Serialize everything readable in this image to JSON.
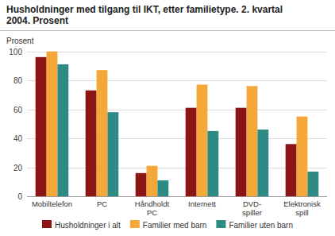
{
  "chart_data": {
    "type": "bar",
    "title": "Husholdninger med tilgang til IKT, etter familietype. 2. kvartal\n2004. Prosent",
    "y_label": "Prosent",
    "categories": [
      "Mobiltelefon",
      "PC",
      "Håndholdt\nPC",
      "Internett",
      "DVD-\nspiller",
      "Elektronisk\nspill"
    ],
    "series": [
      {
        "name": "Husholdninger i alt",
        "color": "#8B1414",
        "values": [
          96,
          73,
          16,
          61,
          61,
          36
        ]
      },
      {
        "name": "Familier med barn",
        "color": "#F5A83A",
        "values": [
          100,
          87,
          21,
          77,
          76,
          55
        ]
      },
      {
        "name": "Familier uten barn",
        "color": "#2E8B84",
        "values": [
          91,
          58,
          11,
          45,
          46,
          17
        ]
      }
    ],
    "ylim": [
      0,
      100
    ],
    "yticks": [
      0,
      20,
      40,
      60,
      80,
      100
    ],
    "grid": true,
    "legend": "bottom"
  }
}
